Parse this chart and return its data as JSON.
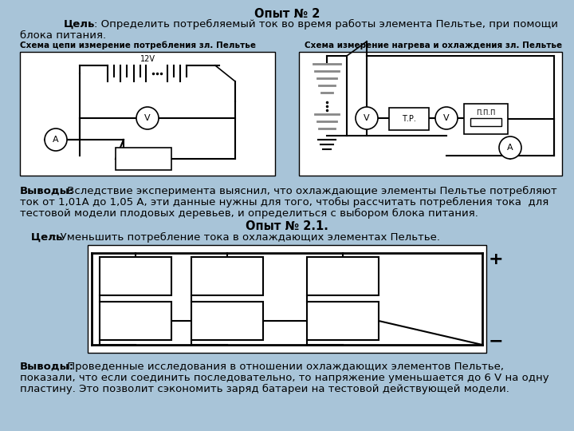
{
  "bg_color": "#a8c4d8",
  "title": "Опыт № 2",
  "subtitle_bold": "Цель",
  "subtitle_rest": ": Определить потребляемый ток во время работы элемента Пельтье, при помощи",
  "subtitle_line2": "блока питания.",
  "schema_left_label": "Схема цепи измерение потребления зл. Пельтье",
  "schema_right_label": "Схема измерение нагрева и охлаждения зл. Пельтье",
  "vyvody1_bold": "Выводы:",
  "vyvody1_line1": " Вследствие эксперимента выяснил, что охлаждающие элементы Пельтье потребляют",
  "vyvody1_line2": "ток от 1,01А до 1,05 А, эти данные нужны для того, чтобы рассчитать потребления тока  для",
  "vyvody1_line3": "тестовой модели плодовых деревьев, и определиться с выбором блока питания.",
  "opyt21_title": "Опыт № 2.1.",
  "opyt21_subtitle_bold": "   Цель",
  "opyt21_subtitle_rest": ": Уменьшить потребление тока в охлаждающих элементах Пельтье.",
  "vyvody2_bold": "Выводы:",
  "vyvody2_line1": " Проведенные исследования в отношении охлаждающих элементов Пельтье,",
  "vyvody2_line2": "показали, что если соединить последовательно, то напряжение уменьшается до 6 V на одну",
  "vyvody2_line3": "пластину. Это позволит сэкономить заряд батареи на тестовой действующей модели."
}
